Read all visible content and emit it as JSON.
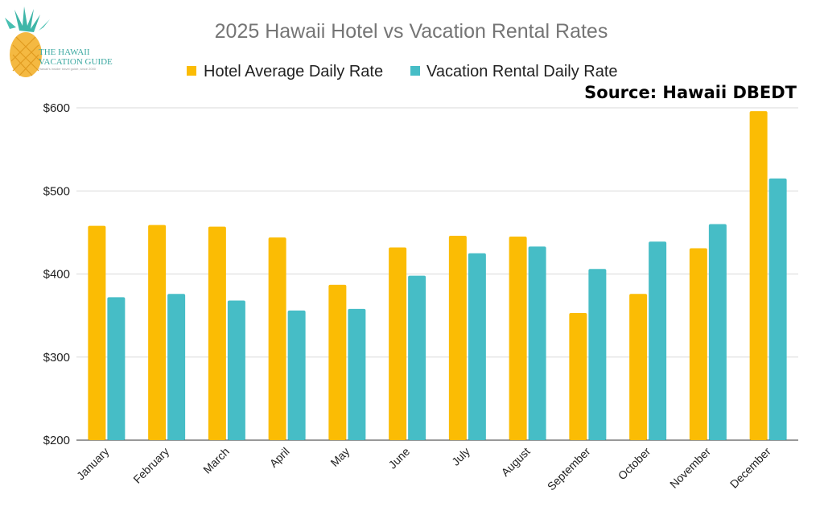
{
  "logo": {
    "line1": "THE HAWAII",
    "line2": "VACATION GUIDE",
    "tagline": "Hawaii's insider travel guide, since 2000"
  },
  "chart_data": {
    "type": "bar",
    "title": "2025 Hawaii Hotel vs Vacation Rental Rates",
    "source_note": "Source: Hawaii DBEDT",
    "categories": [
      "January",
      "February",
      "March",
      "April",
      "May",
      "June",
      "July",
      "August",
      "September",
      "October",
      "November",
      "December"
    ],
    "series": [
      {
        "name": "Hotel Average Daily Rate",
        "color": "#FBBC04",
        "values": [
          458,
          459,
          457,
          444,
          387,
          432,
          446,
          445,
          353,
          376,
          431,
          596
        ]
      },
      {
        "name": "Vacation Rental Daily Rate",
        "color": "#46BDC6",
        "values": [
          372,
          376,
          368,
          356,
          358,
          398,
          425,
          433,
          406,
          439,
          460,
          515
        ]
      }
    ],
    "y_ticks": [
      "$200",
      "$300",
      "$400",
      "$500",
      "$600"
    ],
    "ylim": [
      200,
      600
    ],
    "grid": true,
    "legend_position": "top"
  }
}
